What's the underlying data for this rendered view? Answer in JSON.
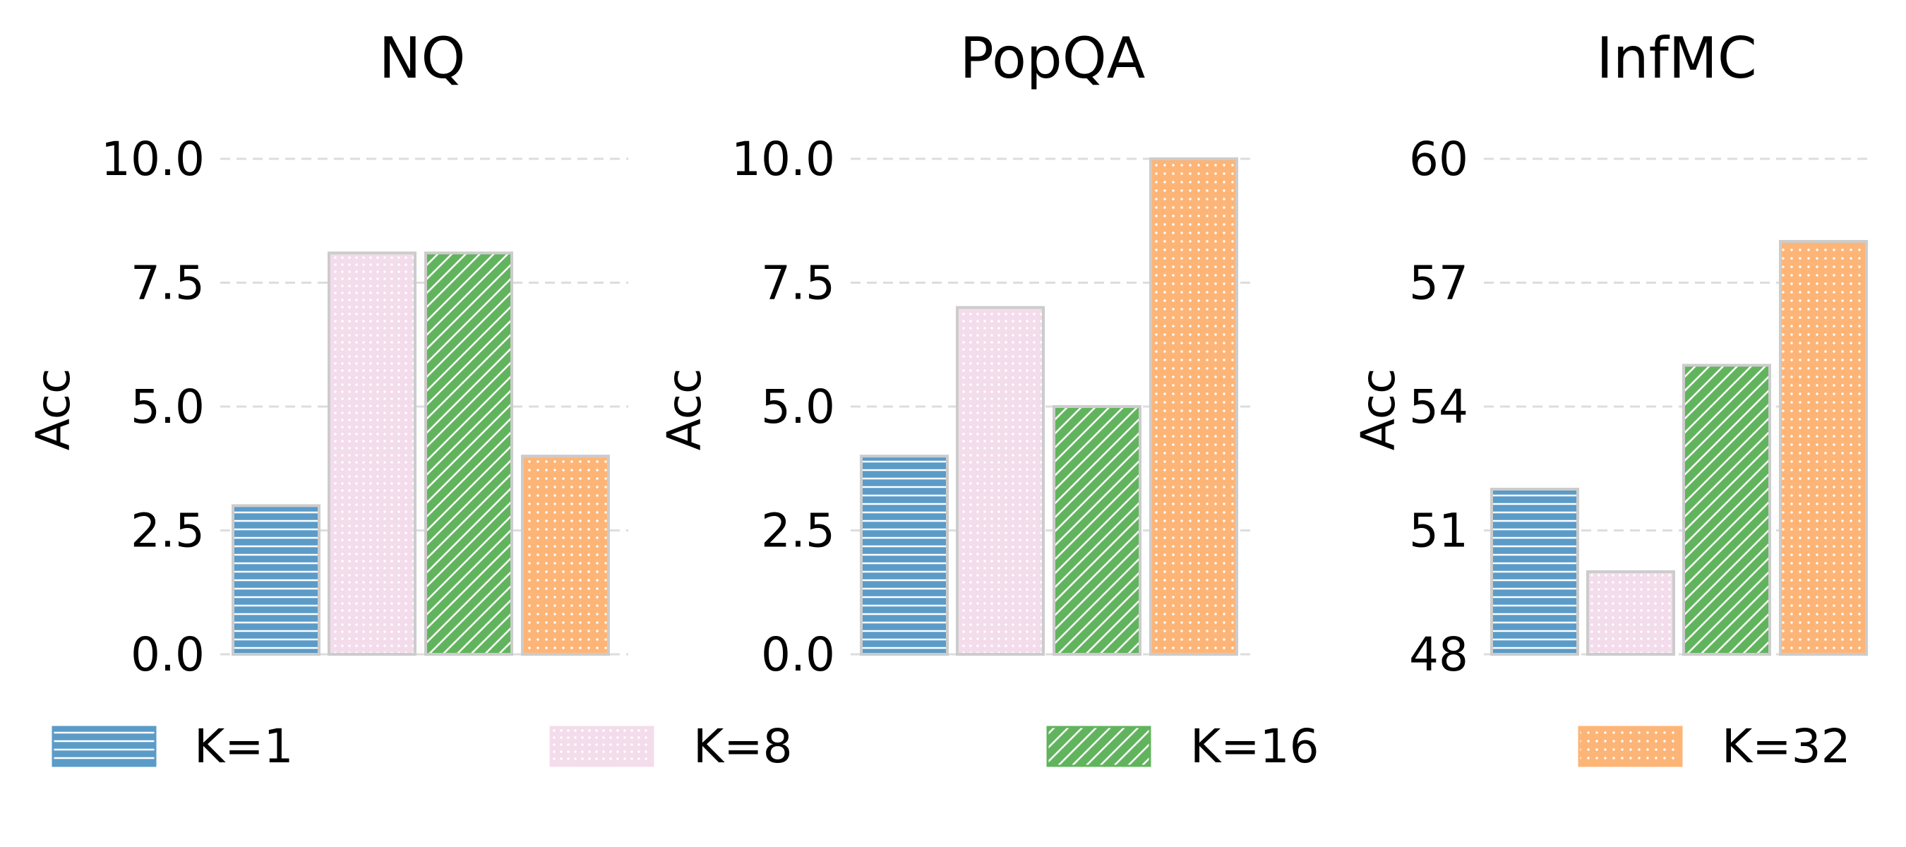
{
  "chart_data": [
    {
      "type": "bar",
      "title": "NQ",
      "ylabel": "Acc",
      "xlabel": "",
      "categories": [
        "K=1",
        "K=8",
        "K=16",
        "K=32"
      ],
      "values": [
        3.0,
        8.1,
        8.1,
        4.0
      ],
      "ylim": [
        0,
        10
      ],
      "yticks": [
        "0.0",
        "2.5",
        "5.0",
        "7.5",
        "10.0"
      ],
      "grid": "horizontal dashed"
    },
    {
      "type": "bar",
      "title": "PopQA",
      "ylabel": "Acc",
      "xlabel": "",
      "categories": [
        "K=1",
        "K=8",
        "K=16",
        "K=32"
      ],
      "values": [
        4.0,
        7.0,
        5.0,
        10.0
      ],
      "ylim": [
        0,
        10
      ],
      "yticks": [
        "0.0",
        "2.5",
        "5.0",
        "7.5",
        "10.0"
      ],
      "grid": "horizontal dashed"
    },
    {
      "type": "bar",
      "title": "InfMC",
      "ylabel": "Acc",
      "xlabel": "",
      "categories": [
        "K=1",
        "K=8",
        "K=16",
        "K=32"
      ],
      "values": [
        52,
        50,
        55,
        58
      ],
      "ylim": [
        48,
        60
      ],
      "yticks": [
        "48",
        "51",
        "54",
        "57",
        "60"
      ],
      "grid": "horizontal dashed"
    }
  ],
  "legend": {
    "placement": "bottom",
    "entries": [
      {
        "label": "K=1",
        "color": "#5b9bc8",
        "pattern": "horizontal-lines"
      },
      {
        "label": "K=8",
        "color": "#f3dceb",
        "pattern": "dots"
      },
      {
        "label": "K=16",
        "color": "#61b45d",
        "pattern": "diagonal-lines"
      },
      {
        "label": "K=32",
        "color": "#fdb577",
        "pattern": "dense-dots"
      }
    ]
  },
  "colors": {
    "bar_edge": "#cccccc",
    "grid": "#dddddd"
  }
}
